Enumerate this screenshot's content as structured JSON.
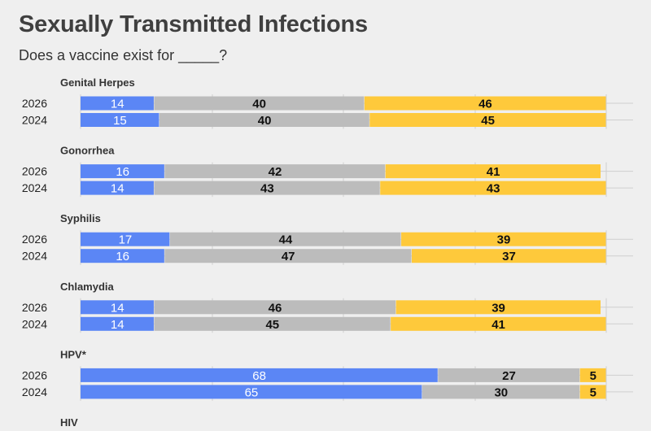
{
  "title": "Sexually Transmitted Infections",
  "subtitle": "Does a vaccine exist for _____?",
  "colors": {
    "yes": "#5b86f5",
    "no": "#bcbcbc",
    "unsure": "#fec93b",
    "grid": "#cfcfcf"
  },
  "chart_data": {
    "type": "bar",
    "orientation": "horizontal",
    "stacked": true,
    "xlim": [
      0,
      100
    ],
    "groups": [
      {
        "name": "Genital Herpes",
        "rows": [
          {
            "year": "2026",
            "values": [
              14,
              40,
              46
            ]
          },
          {
            "year": "2024",
            "values": [
              15,
              40,
              45
            ]
          }
        ]
      },
      {
        "name": "Gonorrhea",
        "rows": [
          {
            "year": "2026",
            "values": [
              16,
              42,
              41
            ]
          },
          {
            "year": "2024",
            "values": [
              14,
              43,
              43
            ]
          }
        ]
      },
      {
        "name": "Syphilis",
        "rows": [
          {
            "year": "2026",
            "values": [
              17,
              44,
              39
            ]
          },
          {
            "year": "2024",
            "values": [
              16,
              47,
              37
            ]
          }
        ]
      },
      {
        "name": "Chlamydia",
        "rows": [
          {
            "year": "2026",
            "values": [
              14,
              46,
              39
            ]
          },
          {
            "year": "2024",
            "values": [
              14,
              45,
              41
            ]
          }
        ]
      },
      {
        "name": "HPV*",
        "rows": [
          {
            "year": "2026",
            "values": [
              68,
              27,
              5
            ]
          },
          {
            "year": "2024",
            "values": [
              65,
              30,
              5
            ]
          }
        ]
      },
      {
        "name": "HIV",
        "rows": []
      }
    ]
  }
}
